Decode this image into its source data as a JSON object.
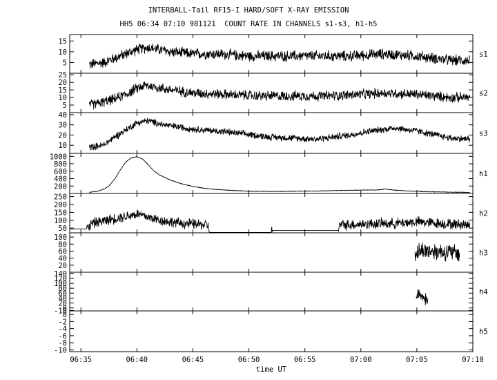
{
  "header": {
    "title": "INTERBALL-Tail RF15-I HARD/SOFT X-RAY EMISSION",
    "subtitle": "HH5 06:34 07:10 981121  COUNT RATE IN CHANNELS s1-s3, h1-h5"
  },
  "chart_data": {
    "type": "line",
    "title": "INTERBALL-Tail RF15-I HARD/SOFT X-RAY EMISSION",
    "subtitle": "HH5 06:34 07:10 981121  COUNT RATE IN CHANNELS s1-s3, h1-h5",
    "xlabel": "time UT",
    "xlim": [
      "06:34",
      "07:10"
    ],
    "x_ticks": [
      "06:35",
      "06:40",
      "06:45",
      "06:50",
      "06:55",
      "07:00",
      "07:05",
      "07:10"
    ],
    "grid": false,
    "panels": [
      {
        "name": "s1",
        "ylim": [
          0,
          18
        ],
        "y_ticks": [
          "5",
          "10",
          "15"
        ],
        "series": {
          "x": [
            "06:35:45",
            "06:37:00",
            "06:38:00",
            "06:39:00",
            "06:40:00",
            "06:41:00",
            "06:42:00",
            "06:43:00",
            "06:45:00",
            "06:47:00",
            "06:50:00",
            "06:53:00",
            "06:56:00",
            "06:59:00",
            "07:02:00",
            "07:05:00",
            "07:08:00",
            "07:09:45"
          ],
          "y": [
            4,
            5,
            7,
            9,
            11,
            12,
            11,
            10,
            9,
            9,
            8,
            8,
            8,
            8,
            9,
            8,
            6,
            6
          ],
          "noise": 3
        }
      },
      {
        "name": "s2",
        "ylim": [
          0,
          26
        ],
        "y_ticks": [
          "5",
          "10",
          "15",
          "20",
          "25"
        ],
        "series": {
          "x": [
            "06:35:45",
            "06:37:00",
            "06:38:00",
            "06:39:00",
            "06:40:00",
            "06:40:45",
            "06:41:30",
            "06:43:00",
            "06:45:00",
            "06:48:00",
            "06:51:00",
            "06:54:00",
            "06:57:00",
            "07:00:00",
            "07:02:00",
            "07:05:00",
            "07:08:00",
            "07:09:45"
          ],
          "y": [
            5,
            7,
            9,
            12,
            16,
            18,
            17,
            15,
            13,
            12,
            11,
            11,
            11,
            12,
            13,
            12,
            10,
            10
          ],
          "noise": 4
        }
      },
      {
        "name": "s3",
        "ylim": [
          2,
          42
        ],
        "y_ticks": [
          "10",
          "20",
          "30",
          "40"
        ],
        "series": {
          "x": [
            "06:35:45",
            "06:37:00",
            "06:38:00",
            "06:39:00",
            "06:40:00",
            "06:41:00",
            "06:42:00",
            "06:43:00",
            "06:45:00",
            "06:48:00",
            "06:52:00",
            "06:56:00",
            "06:59:00",
            "07:01:00",
            "07:03:00",
            "07:05:00",
            "07:08:00",
            "07:09:45"
          ],
          "y": [
            8,
            10,
            18,
            25,
            32,
            34,
            31,
            29,
            26,
            23,
            18,
            16,
            20,
            24,
            27,
            24,
            17,
            16
          ],
          "noise": 4
        }
      },
      {
        "name": "h1",
        "ylim": [
          0,
          1080
        ],
        "y_ticks": [
          "200",
          "400",
          "600",
          "800",
          "1000"
        ],
        "series": {
          "x": [
            "06:35:45",
            "06:36:30",
            "06:37:00",
            "06:37:30",
            "06:38:00",
            "06:38:30",
            "06:39:00",
            "06:39:30",
            "06:40:00",
            "06:40:30",
            "06:41:00",
            "06:41:30",
            "06:42:00",
            "06:43:00",
            "06:44:00",
            "06:45:00",
            "06:46:00",
            "06:47:00",
            "06:48:00",
            "06:50:00",
            "06:52:00",
            "06:54:00",
            "06:56:00",
            "06:58:00",
            "07:00:00",
            "07:01:30",
            "07:02:10",
            "07:03:00",
            "07:04:00",
            "07:06:00",
            "07:08:00",
            "07:09:45"
          ],
          "y": [
            30,
            60,
            110,
            200,
            380,
            620,
            850,
            960,
            990,
            930,
            780,
            610,
            500,
            360,
            260,
            190,
            140,
            110,
            90,
            60,
            55,
            60,
            65,
            80,
            90,
            95,
            120,
            90,
            70,
            45,
            35,
            30
          ],
          "noise": 8
        }
      },
      {
        "name": "h2",
        "ylim": [
          20,
          270
        ],
        "y_ticks": [
          "50",
          "100",
          "150",
          "200",
          "250"
        ],
        "series": {
          "x": [
            "06:34:00",
            "06:35:30",
            "06:36:00",
            "06:37:00",
            "06:38:00",
            "06:39:00",
            "06:40:00",
            "06:41:00",
            "06:42:00",
            "06:44:00",
            "06:46:20",
            "06:46:30",
            "06:52:00",
            "06:52:05",
            "06:58:00",
            "06:58:05",
            "07:00:00",
            "07:03:00",
            "07:05:00",
            "07:07:00",
            "07:09:45"
          ],
          "y": [
            45,
            45,
            80,
            95,
            110,
            125,
            140,
            120,
            100,
            80,
            70,
            20,
            20,
            35,
            35,
            70,
            75,
            80,
            90,
            80,
            70
          ],
          "noise": 40
        }
      },
      {
        "name": "h3",
        "ylim": [
          0,
          112
        ],
        "y_ticks": [
          "20",
          "40",
          "60",
          "80",
          "100"
        ],
        "series": {
          "x": [
            "07:04:50",
            "07:05:30",
            "07:06:30",
            "07:07:30",
            "07:08:30",
            "07:08:50"
          ],
          "y": [
            55,
            62,
            60,
            58,
            55,
            52
          ],
          "noise": 30
        }
      },
      {
        "name": "h4",
        "ylim": [
          -12,
          145
        ],
        "y_ticks": [
          "-10",
          "0",
          "20",
          "40",
          "60",
          "80",
          "100",
          "120",
          "140"
        ],
        "series": {
          "x": [
            "07:04:55",
            "07:05:10",
            "07:05:30",
            "07:05:50",
            "07:06:00"
          ],
          "y": [
            40,
            60,
            45,
            35,
            30
          ],
          "noise": 30
        }
      },
      {
        "name": "h5",
        "ylim": [
          -10.5,
          1
        ],
        "y_ticks": [
          "-10",
          "-8",
          "-6",
          "-4",
          "-2",
          "0"
        ],
        "series": {
          "x": [],
          "y": [],
          "noise": 0
        }
      }
    ]
  }
}
